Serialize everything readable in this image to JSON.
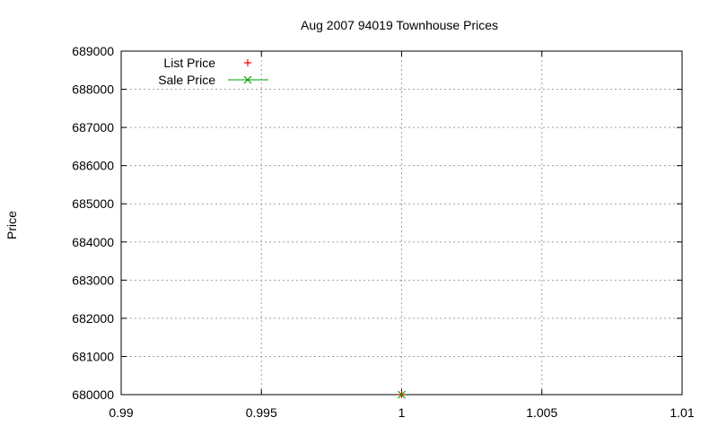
{
  "chart_data": {
    "type": "scatter",
    "title": "Aug 2007 94019 Townhouse Prices",
    "xlabel": "",
    "ylabel": "Price",
    "xlim": [
      0.99,
      1.01
    ],
    "ylim": [
      680000,
      689000
    ],
    "x_ticks": [
      "0.99",
      "0.995",
      "1",
      "1.005",
      "1.01"
    ],
    "y_ticks": [
      "680000",
      "681000",
      "682000",
      "683000",
      "684000",
      "685000",
      "686000",
      "687000",
      "688000",
      "689000"
    ],
    "grid": true,
    "legend_position": "top-left",
    "series": [
      {
        "name": "List Price",
        "style": "points",
        "marker": "plus",
        "color": "#ff0000",
        "points": [
          [
            1,
            680000
          ]
        ]
      },
      {
        "name": "Sale Price",
        "style": "linespoints",
        "marker": "cross",
        "color": "#00a000",
        "points": [
          [
            1,
            680000
          ]
        ]
      }
    ]
  }
}
